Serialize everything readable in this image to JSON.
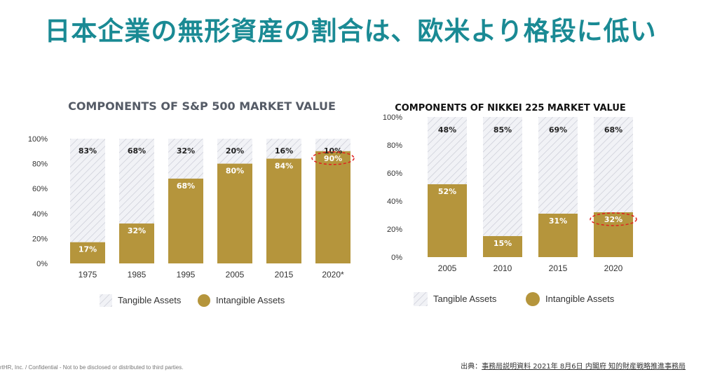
{
  "title": "日本企業の無形資産の割合は、欧米より格段に低い",
  "chart_data": [
    {
      "type": "bar",
      "stacked": true,
      "title": "COMPONENTS OF S&P 500 MARKET VALUE",
      "categories": [
        "1975",
        "1985",
        "1995",
        "2005",
        "2015",
        "2020*"
      ],
      "yticks": [
        "0%",
        "20%",
        "40%",
        "60%",
        "80%",
        "100%"
      ],
      "ylim": [
        0,
        100
      ],
      "series": [
        {
          "name": "Intangible Assets",
          "values": [
            17,
            32,
            68,
            80,
            84,
            90
          ],
          "labels": [
            "17%",
            "32%",
            "68%",
            "80%",
            "84%",
            "90%"
          ],
          "color": "#b5953c"
        },
        {
          "name": "Tangible Assets",
          "values": [
            83,
            68,
            32,
            20,
            16,
            10
          ],
          "labels": [
            "83%",
            "68%",
            "32%",
            "20%",
            "16%",
            "10%"
          ],
          "color": "#e8e9ee"
        }
      ],
      "highlight_category_index": 5,
      "legend": {
        "position": "bottom",
        "items": [
          "Tangible Assets",
          "Intangible Assets"
        ]
      }
    },
    {
      "type": "bar",
      "stacked": true,
      "title": "COMPONENTS OF NIKKEI 225 MARKET VALUE",
      "categories": [
        "2005",
        "2010",
        "2015",
        "2020"
      ],
      "yticks": [
        "0%",
        "20%",
        "40%",
        "60%",
        "80%",
        "100%"
      ],
      "ylim": [
        0,
        100
      ],
      "series": [
        {
          "name": "Intangible Assets",
          "values": [
            52,
            15,
            31,
            32
          ],
          "labels": [
            "52%",
            "15%",
            "31%",
            "32%"
          ],
          "color": "#b5953c"
        },
        {
          "name": "Tangible Assets",
          "values": [
            48,
            85,
            69,
            68
          ],
          "labels": [
            "48%",
            "85%",
            "69%",
            "68%"
          ],
          "color": "#e8e9ee"
        }
      ],
      "highlight_category_index": 3,
      "legend": {
        "position": "bottom",
        "items": [
          "Tangible Assets",
          "Intangible Assets"
        ]
      }
    }
  ],
  "footer": {
    "source_prefix": "出典：",
    "source_link": "事務局説明資料 2021年 8月6日 内閣府 知的財産戦略推進事務局",
    "confidential": "rtHR, Inc. / Confidential - Not to be disclosed or distributed to third parties."
  },
  "colors": {
    "title": "#1a8a94",
    "intangible": "#b5953c",
    "tangible": "#e8e9ee",
    "highlight": "#e02020"
  }
}
